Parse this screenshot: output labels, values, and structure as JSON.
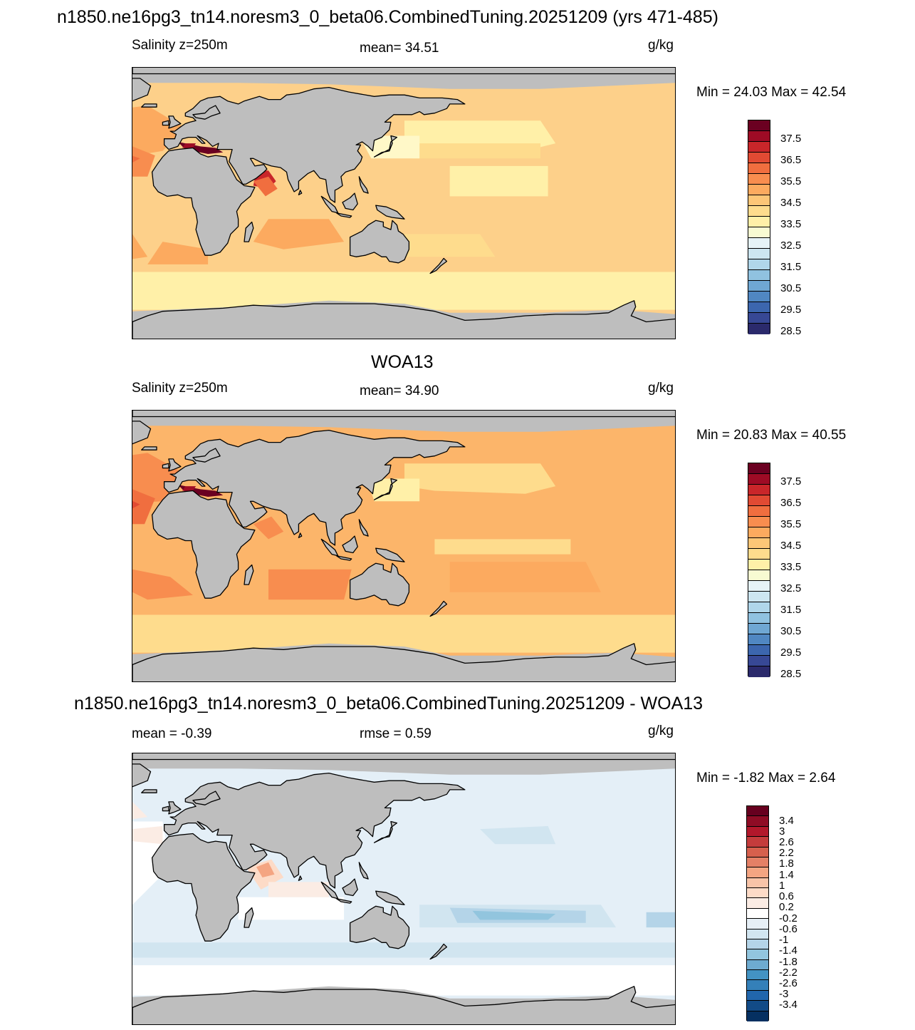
{
  "panels": [
    {
      "title": "n1850.ne16pg3_tn14.noresm3_0_beta06.CombinedTuning.20251209 (yrs 471-485)",
      "left_label": "Salinity z=250m",
      "center_label": "mean=  34.51",
      "units": "g/kg",
      "minmax": "Min =  24.03 Max =  42.54",
      "ocean_base": "#fdd08a",
      "colorbar": {
        "colors": [
          "#6b0021",
          "#9e0b25",
          "#c9262a",
          "#e14a33",
          "#f06e3f",
          "#f88d4f",
          "#fcaa5f",
          "#fdc677",
          "#fedc8d",
          "#fff0a8",
          "#f7fbd2",
          "#e6f3f7",
          "#cde6f1",
          "#b0d6ea",
          "#90c2e0",
          "#6fa7d3",
          "#5087c2",
          "#3c66ae",
          "#374895",
          "#2b2a6c"
        ],
        "labels": [
          "37.5",
          "36.5",
          "35.5",
          "34.5",
          "33.5",
          "32.5",
          "31.5",
          "30.5",
          "29.5",
          "28.5"
        ]
      }
    },
    {
      "title": "WOA13",
      "left_label": "Salinity z=250m",
      "center_label": "mean=  34.90",
      "units": "g/kg",
      "minmax": "Min =  20.83 Max =  40.55",
      "ocean_base": "#fcb56a",
      "colorbar": {
        "colors": [
          "#6b0021",
          "#9e0b25",
          "#c9262a",
          "#e14a33",
          "#f06e3f",
          "#f88d4f",
          "#fcaa5f",
          "#fdc677",
          "#fedc8d",
          "#fff0a8",
          "#f7fbd2",
          "#e6f3f7",
          "#cde6f1",
          "#b0d6ea",
          "#90c2e0",
          "#6fa7d3",
          "#5087c2",
          "#3c66ae",
          "#374895",
          "#2b2a6c"
        ],
        "labels": [
          "37.5",
          "36.5",
          "35.5",
          "34.5",
          "33.5",
          "32.5",
          "31.5",
          "30.5",
          "29.5",
          "28.5"
        ]
      }
    },
    {
      "title": "n1850.ne16pg3_tn14.noresm3_0_beta06.CombinedTuning.20251209 - WOA13",
      "left_label": "mean =  -0.39",
      "center_label": "rmse =   0.59",
      "units": "g/kg",
      "minmax": "Min =  -1.82 Max =   2.64",
      "ocean_base": "#e4eff7",
      "colorbar": {
        "colors": [
          "#67001f",
          "#8f0c25",
          "#b2182b",
          "#c43c3c",
          "#d6604d",
          "#e48066",
          "#f4a582",
          "#f8c4a8",
          "#fddbc7",
          "#fbece4",
          "#ffffff",
          "#e6eff6",
          "#d1e5f0",
          "#b4d4e8",
          "#92c5de",
          "#6eabd0",
          "#4393c3",
          "#3480b9",
          "#2166ac",
          "#124b87",
          "#053061"
        ],
        "labels": [
          "3.4",
          "3",
          "2.6",
          "2.2",
          "1.8",
          "1.4",
          "1",
          "0.6",
          "0.2",
          "-0.2",
          "-0.6",
          "-1",
          "-1.4",
          "-1.8",
          "-2.2",
          "-2.6",
          "-3",
          "-3.4"
        ]
      }
    }
  ],
  "colors": {
    "land": "#bebebe",
    "coast": "#000000"
  }
}
